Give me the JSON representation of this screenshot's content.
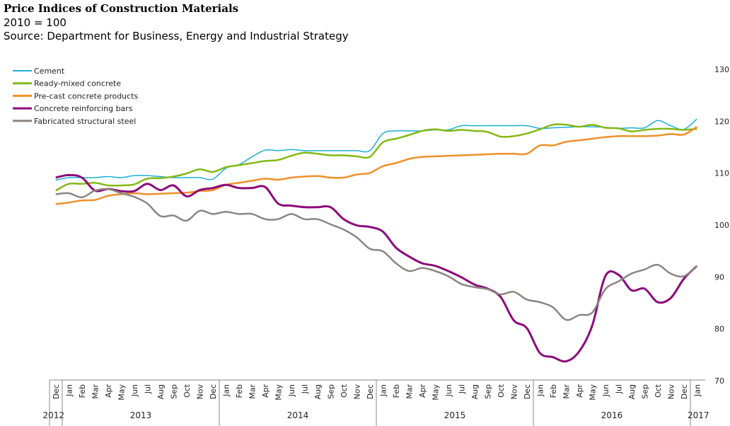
{
  "chart_data": {
    "type": "line",
    "title": "Price Indices of Construction Materials",
    "subtitle": "2010 = 100",
    "source": "Source: Department for Business, Energy and Industrial Strategy",
    "ylim": [
      70,
      130
    ],
    "yticks": [
      70,
      80,
      90,
      100,
      110,
      120,
      130
    ],
    "y_axis_side": "right",
    "legend_placement": "top-left",
    "months": [
      "Dec",
      "Jan",
      "Feb",
      "Mar",
      "Apr",
      "May",
      "Jun",
      "Jul",
      "Aug",
      "Sep",
      "Oct",
      "Nov",
      "Dec",
      "Jan",
      "Feb",
      "Mar",
      "Apr",
      "May",
      "Jun",
      "Jul",
      "Aug",
      "Sep",
      "Oct",
      "Nov",
      "Dec",
      "Jan",
      "Feb",
      "Mar",
      "Apr",
      "May",
      "Jun",
      "Jul",
      "Aug",
      "Sep",
      "Oct",
      "Nov",
      "Dec",
      "Jan",
      "Feb",
      "Mar",
      "Apr",
      "May",
      "Jun",
      "Jul",
      "Aug",
      "Sep",
      "Oct",
      "Nov",
      "Dec",
      "Jan"
    ],
    "years": [
      {
        "label": "2012",
        "start": 0,
        "count": 1
      },
      {
        "label": "2013",
        "start": 1,
        "count": 12
      },
      {
        "label": "2014",
        "start": 13,
        "count": 12
      },
      {
        "label": "2015",
        "start": 25,
        "count": 12
      },
      {
        "label": "2016",
        "start": 37,
        "count": 12
      },
      {
        "label": "2017",
        "start": 49,
        "count": 1
      }
    ],
    "series": [
      {
        "name": "Cement",
        "color": "#1ab0d8",
        "values": [
          108.5,
          109,
          109,
          109,
          109.2,
          109,
          109.4,
          109.4,
          109.2,
          109,
          109,
          109,
          108.7,
          110.8,
          111.5,
          113,
          114.3,
          114.2,
          114.4,
          114.2,
          114.2,
          114.2,
          114.2,
          114.2,
          114.2,
          117.5,
          118,
          118,
          118,
          118.2,
          118.2,
          119,
          119,
          119,
          119,
          119,
          119,
          118.5,
          118.6,
          118.7,
          118.8,
          118.8,
          118.7,
          118.5,
          118.6,
          118.6,
          120,
          119,
          118.3,
          120.3
        ]
      },
      {
        "name": "Ready-mixed concrete",
        "color": "#84b817",
        "values": [
          106.5,
          107.8,
          107.8,
          108,
          107.5,
          107.5,
          107.7,
          108.8,
          108.9,
          109.2,
          109.8,
          110.6,
          110.1,
          111,
          111.4,
          111.8,
          112.2,
          112.4,
          113.2,
          113.8,
          113.6,
          113.3,
          113.3,
          113.1,
          113,
          115.8,
          116.5,
          117.2,
          118,
          118.3,
          118,
          118.2,
          118,
          117.8,
          116.9,
          117,
          117.5,
          118.3,
          119.2,
          119.2,
          118.8,
          119.2,
          118.6,
          118.5,
          117.9,
          118.2,
          118.4,
          118.4,
          118.2,
          118.4
        ]
      },
      {
        "name": "Pre-cast concrete products",
        "color": "#f0902a",
        "values": [
          103.9,
          104.2,
          104.6,
          104.7,
          105.5,
          105.8,
          106,
          105.8,
          105.9,
          106,
          106.1,
          106.4,
          106.6,
          107.6,
          108,
          108.4,
          108.8,
          108.6,
          109,
          109.2,
          109.3,
          109,
          109,
          109.6,
          109.9,
          111.2,
          111.8,
          112.6,
          113,
          113.1,
          113.2,
          113.3,
          113.4,
          113.5,
          113.6,
          113.6,
          113.6,
          115.2,
          115.2,
          115.9,
          116.2,
          116.5,
          116.8,
          117,
          117,
          117,
          117.1,
          117.4,
          117.3,
          118.8
        ]
      },
      {
        "name": "Concrete reinforcing bars",
        "color": "#8b0a7a",
        "values": [
          109,
          109.5,
          109,
          106.5,
          106.8,
          106.4,
          106.4,
          107.8,
          106.6,
          107.5,
          105.4,
          106.6,
          107,
          107.6,
          107,
          107,
          107.2,
          104,
          103.6,
          103.3,
          103.3,
          103.3,
          101,
          99.8,
          99.5,
          98.6,
          95.5,
          93.8,
          92.5,
          92,
          91,
          89.8,
          88.4,
          87.6,
          86,
          81.5,
          80,
          75.2,
          74.4,
          73.6,
          75.5,
          80.5,
          90,
          90.3,
          87.3,
          87.6,
          85,
          85.8,
          89.5,
          92
        ]
      },
      {
        "name": "Fabricated structural steel",
        "color": "#8c8580",
        "values": [
          105.8,
          106,
          105.2,
          106.5,
          106.8,
          106,
          105.3,
          104,
          101.6,
          101.7,
          100.7,
          102.6,
          102,
          102.4,
          102,
          102,
          101,
          101,
          102,
          101,
          101,
          100,
          99,
          97.5,
          95.3,
          94.8,
          92.5,
          91,
          91.6,
          91,
          90,
          88.5,
          87.9,
          87.5,
          86.5,
          87,
          85.5,
          85,
          84,
          81.6,
          82.5,
          83,
          87.5,
          89,
          90.5,
          91.3,
          92.2,
          90.5,
          90,
          92
        ]
      }
    ]
  }
}
